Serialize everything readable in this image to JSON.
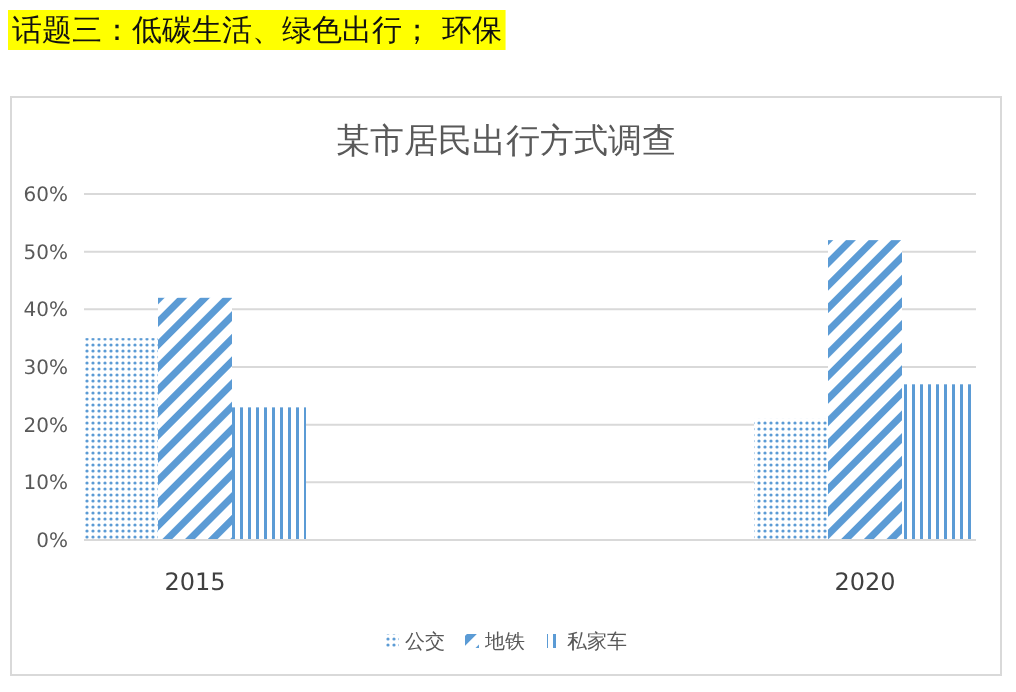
{
  "chart_data": {
    "type": "bar",
    "title": "某市居民出行方式调查",
    "annotations": [
      "话题三：低碳生活、绿色出行；  环保"
    ],
    "categories": [
      "2015",
      "2020"
    ],
    "series": [
      {
        "name": "公交",
        "color": "#5b9bd5",
        "values": [
          35,
          21
        ]
      },
      {
        "name": "地铁",
        "color": "#5b9bd5",
        "values": [
          42,
          52
        ]
      },
      {
        "name": "私家车",
        "color": "#5b9bd5",
        "values": [
          23,
          27
        ]
      }
    ],
    "ylim": [
      0,
      60
    ],
    "yticks": [
      {
        "value": 0,
        "label": "0%"
      },
      {
        "value": 10,
        "label": "10%"
      },
      {
        "value": 20,
        "label": "20%"
      },
      {
        "value": 30,
        "label": "30%"
      },
      {
        "value": 40,
        "label": "40%"
      },
      {
        "value": 50,
        "label": "50%"
      },
      {
        "value": 60,
        "label": "60%"
      }
    ],
    "grid": "y",
    "legend": "bottom"
  }
}
